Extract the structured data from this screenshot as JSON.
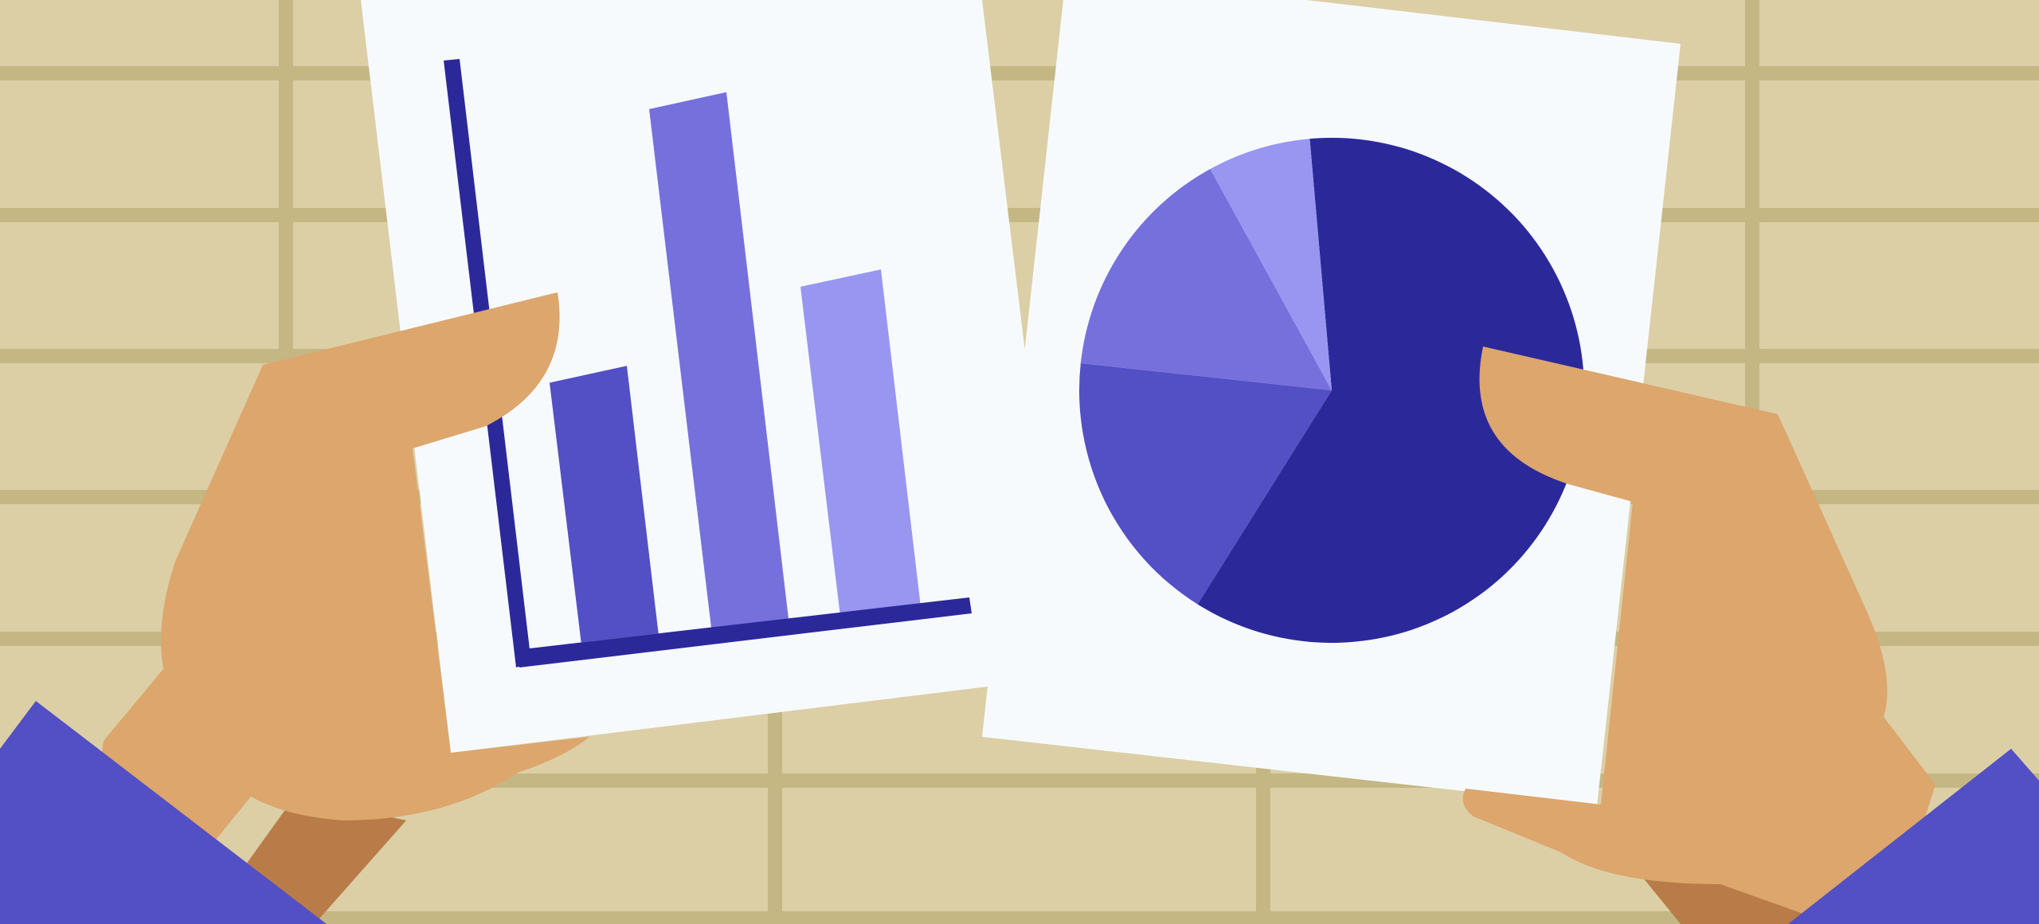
{
  "colors": {
    "background": "#dccfa6",
    "grid_line": "#c4b784",
    "paper": "#f7fafd",
    "paper_shadow": "#e4e3fb",
    "skin": "#dca66d",
    "skin_shade": "#b97c48",
    "sleeve": "#534fc5",
    "axis": "#2b299a",
    "bar_dark": "#534fc5",
    "bar_mid": "#7670dd",
    "bar_light": "#9896f1",
    "pie_darkest": "#2b299a",
    "pie_dark": "#534fc5",
    "pie_mid": "#7670dd",
    "pie_light": "#9896f1"
  },
  "bar_chart": {
    "type": "bar",
    "values": [
      0.48,
      0.95,
      0.6
    ],
    "colors": [
      "bar_dark",
      "bar_mid",
      "bar_light"
    ]
  },
  "pie_chart": {
    "type": "pie",
    "slices": [
      {
        "value": 0.603,
        "color": "pie_darkest"
      },
      {
        "value": 0.178,
        "color": "pie_dark"
      },
      {
        "value": 0.153,
        "color": "pie_mid"
      },
      {
        "value": 0.066,
        "color": "pie_light"
      }
    ]
  }
}
